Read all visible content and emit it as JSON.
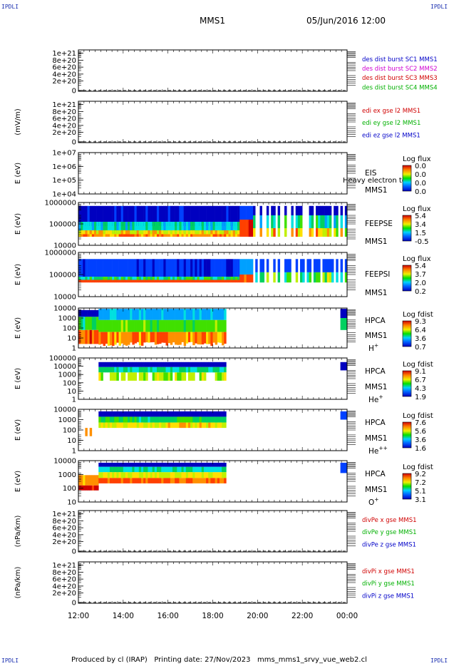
{
  "corners": {
    "tl": "IPDLI",
    "tr": "IPDLI",
    "bl": "IPDLI",
    "br": "IPDLI"
  },
  "header": {
    "title": "MMS1",
    "datetime": "05/Jun/2016 12:00"
  },
  "footer": {
    "text": "Produced by cl (IRAP)   Printing date: 27/Nov/2023   mms_mms1_srvy_vue_web2.cl"
  },
  "chart_data": [
    {
      "type": "line",
      "ylabel": "",
      "yticks": [
        "1e+21",
        "8e+20",
        "6e+20",
        "4e+20",
        "2e+20",
        "0"
      ],
      "legend": [
        {
          "text": "des dist burst SC1 MMS1",
          "color": "#0000c8"
        },
        {
          "text": "des dist burst SC2 MMS2",
          "color": "#d000d0"
        },
        {
          "text": "des dist burst SC3 MMS3",
          "color": "#d00000"
        },
        {
          "text": "des dist burst SC4 MMS4",
          "color": "#00b000"
        }
      ],
      "zero_line": "dashed"
    },
    {
      "type": "line",
      "ylabel": "(mV/m)",
      "yticks": [
        "1e+21",
        "8e+20",
        "6e+20",
        "4e+20",
        "2e+20",
        "0"
      ],
      "legend": [
        {
          "text": "edi ex gse l2 MMS1",
          "color": "#d00000"
        },
        {
          "text": "edi ey gse l2 MMS1",
          "color": "#00b000"
        },
        {
          "text": "edi ez gse l2 MMS1",
          "color": "#0000c8"
        }
      ],
      "zero_line": "dashed"
    },
    {
      "type": "heatmap",
      "ylabel": "E (eV)",
      "yticks": [
        "1e+07",
        "1e+06",
        "1e+05",
        "1e+04"
      ],
      "label_lines": [
        "EIS",
        "MMS1"
      ],
      "overlay": "Heavy electron to",
      "colorbar": {
        "title": "Log flux",
        "ticks": [
          "0.0",
          "0.0",
          "0.0",
          "0.0"
        ]
      },
      "data": "empty"
    },
    {
      "type": "heatmap",
      "ylabel": "E (eV)",
      "yticks": [
        "1000000",
        "100000",
        "10000"
      ],
      "label_lines": [
        "FEEPSE",
        "MMS1"
      ],
      "colorbar": {
        "title": "Log flux",
        "ticks": [
          "5.4",
          "3.4",
          "1.5",
          "-0.5"
        ]
      },
      "pattern": "feeps"
    },
    {
      "type": "heatmap",
      "ylabel": "E (eV)",
      "yticks": [
        "1000000",
        "100000",
        "10000"
      ],
      "label_lines": [
        "FEEPSI",
        "MMS1"
      ],
      "colorbar": {
        "title": "Log flux",
        "ticks": [
          "5.4",
          "3.7",
          "2.0",
          "0.2"
        ]
      },
      "pattern": "feepsi"
    },
    {
      "type": "heatmap",
      "ylabel": "E (eV)",
      "yticks": [
        "10000",
        "1000",
        "100",
        "10",
        "1"
      ],
      "label_lines": [
        "HPCA",
        "MMS1"
      ],
      "species": "H",
      "species_sup": "+",
      "colorbar": {
        "title": "Log fdist",
        "ticks": [
          "9.3",
          "6.4",
          "3.6",
          "0.7"
        ]
      },
      "pattern": "hpca_h"
    },
    {
      "type": "heatmap",
      "ylabel": "E (eV)",
      "yticks": [
        "100000",
        "10000",
        "1000",
        "100",
        "10",
        "1"
      ],
      "label_lines": [
        "HPCA",
        "MMS1"
      ],
      "species": "He",
      "species_sup": "+",
      "colorbar": {
        "title": "Log fdist",
        "ticks": [
          "9.1",
          "6.7",
          "4.3",
          "1.9"
        ]
      },
      "pattern": "hpca_he"
    },
    {
      "type": "heatmap",
      "ylabel": "E (eV)",
      "yticks": [
        "10000",
        "1000",
        "100",
        "10",
        "1"
      ],
      "label_lines": [
        "HPCA",
        "MMS1"
      ],
      "species": "He",
      "species_sup": "++",
      "colorbar": {
        "title": "Log fdist",
        "ticks": [
          "7.6",
          "5.6",
          "3.6",
          "1.6"
        ]
      },
      "pattern": "hpca_hepp"
    },
    {
      "type": "heatmap",
      "ylabel": "E (eV)",
      "yticks": [
        "10000",
        "1000",
        "100",
        "10"
      ],
      "label_lines": [
        "HPCA",
        "MMS1"
      ],
      "species": "O",
      "species_sup": "+",
      "colorbar": {
        "title": "Log fdist",
        "ticks": [
          "9.2",
          "7.2",
          "5.1",
          "3.1"
        ]
      },
      "pattern": "hpca_o"
    },
    {
      "type": "line",
      "ylabel": "(nPa/km)",
      "yticks": [
        "1e+21",
        "8e+20",
        "6e+20",
        "4e+20",
        "2e+20",
        "0"
      ],
      "legend": [
        {
          "text": "divPe x gse MMS1",
          "color": "#d00000"
        },
        {
          "text": "divPe y gse MMS1",
          "color": "#00b000"
        },
        {
          "text": "divPe z gse MMS1",
          "color": "#0000c8"
        }
      ],
      "zero_line": "dashed"
    },
    {
      "type": "line",
      "ylabel": "(nPa/km)",
      "yticks": [
        "1e+21",
        "8e+20",
        "6e+20",
        "4e+20",
        "2e+20",
        "0"
      ],
      "legend": [
        {
          "text": "divPi x gse MMS1",
          "color": "#d00000"
        },
        {
          "text": "divPi y gse MMS1",
          "color": "#00b000"
        },
        {
          "text": "divPi z gse MMS1",
          "color": "#0000c8"
        }
      ],
      "zero_line": "dashed"
    }
  ],
  "xaxis": {
    "ticks": [
      "12:00",
      "14:00",
      "16:00",
      "18:00",
      "20:00",
      "22:00",
      "00:00"
    ]
  }
}
